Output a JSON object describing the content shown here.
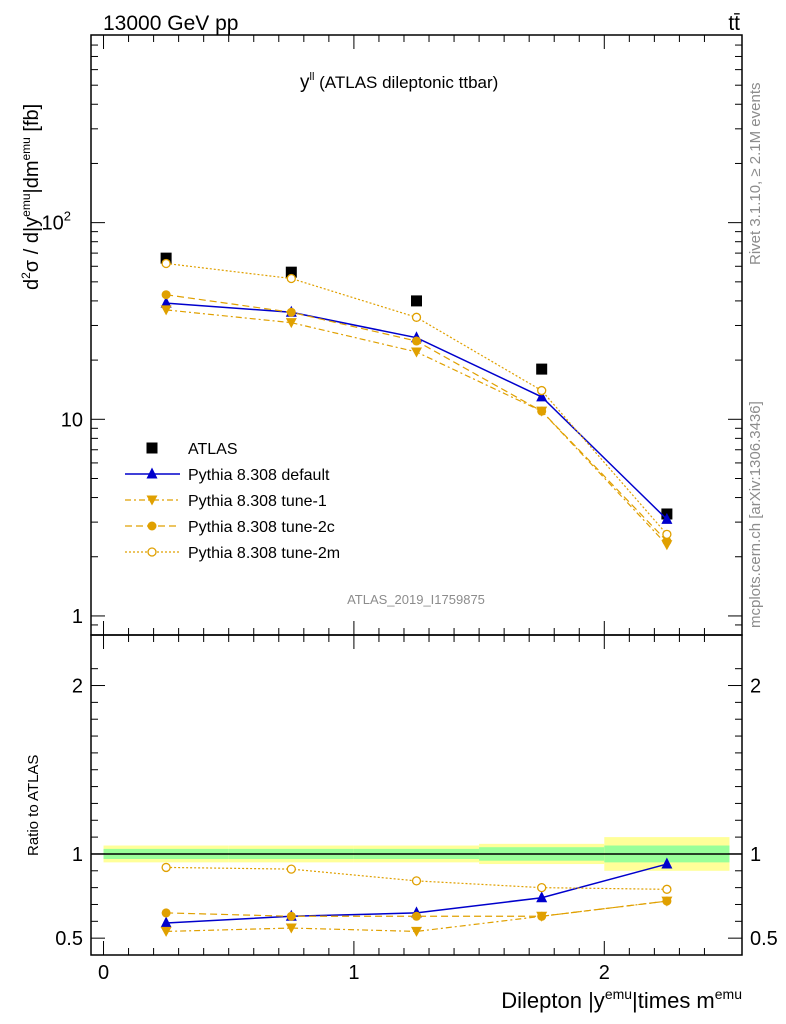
{
  "header": {
    "energy_label": "13000 GeV pp",
    "process_label": "tt̄"
  },
  "side_labels": {
    "rivet": "Rivet 3.1.10, ≥ 2.1M events",
    "mcplots": "mcplots.cern.ch [arXiv:1306.3436]"
  },
  "watermark": "ATLAS_2019_I1759875",
  "chart_data": [
    {
      "type": "scatter",
      "title": "y^ll (ATLAS dileptonic ttbar)",
      "title_main": "y",
      "title_sup": "ll",
      "title_rest": " (ATLAS dileptonic ttbar)",
      "ylabel": "d²σ / d|y^emu|dm^emu [fb]",
      "yscale": "log",
      "ylim": [
        0.8,
        900
      ],
      "yticks": [
        {
          "value": 1,
          "label": "1"
        },
        {
          "value": 10,
          "label": "10"
        },
        {
          "value": 100,
          "label": "10",
          "sup": "2"
        }
      ],
      "x": [
        0.25,
        0.75,
        1.25,
        1.75,
        2.25
      ],
      "xlim": [
        -0.05,
        2.55
      ],
      "legend_position": "lower-left",
      "series": [
        {
          "name": "ATLAS",
          "color": "#000000",
          "marker": "square",
          "line": "none",
          "values": [
            66,
            56,
            40,
            18,
            3.3
          ]
        },
        {
          "name": "Pythia 8.308 default",
          "color": "#0000cc",
          "marker": "triangle-up",
          "line": "solid",
          "values": [
            39,
            35,
            26,
            13,
            3.1
          ]
        },
        {
          "name": "Pythia 8.308 tune-1",
          "color": "#e0a000",
          "marker": "triangle-down",
          "line": "dashdot",
          "values": [
            36,
            31,
            22,
            11,
            2.3
          ]
        },
        {
          "name": "Pythia 8.308 tune-2c",
          "color": "#e0a000",
          "marker": "circle",
          "line": "dashed",
          "values": [
            43,
            35,
            25,
            11,
            2.4
          ]
        },
        {
          "name": "Pythia 8.308 tune-2m",
          "color": "#e0a000",
          "marker": "circle-open",
          "line": "dotted",
          "values": [
            62,
            52,
            33,
            14,
            2.6
          ]
        }
      ]
    },
    {
      "type": "scatter",
      "ylabel": "Ratio to ATLAS",
      "xlabel": "Dilepton |y^emu|times m^emu",
      "xlabel_parts": [
        "Dilepton |y",
        "emu",
        "|times m",
        "emu"
      ],
      "ylim": [
        0.4,
        2.3
      ],
      "yticks": [
        {
          "value": 0.5,
          "label": "0.5"
        },
        {
          "value": 1,
          "label": "1"
        },
        {
          "value": 2,
          "label": "2"
        }
      ],
      "xticks": [
        {
          "value": 0,
          "label": "0"
        },
        {
          "value": 1,
          "label": "1"
        },
        {
          "value": 2,
          "label": "2"
        }
      ],
      "x": [
        0.25,
        0.75,
        1.25,
        1.75,
        2.25
      ],
      "xlim": [
        -0.05,
        2.55
      ],
      "reference_line": 1,
      "uncertainty_bands": [
        {
          "x_range": [
            0,
            0.5
          ],
          "stat": [
            0.97,
            1.03
          ],
          "total": [
            0.95,
            1.05
          ]
        },
        {
          "x_range": [
            0.5,
            1.0
          ],
          "stat": [
            0.97,
            1.03
          ],
          "total": [
            0.95,
            1.05
          ]
        },
        {
          "x_range": [
            1.0,
            1.5
          ],
          "stat": [
            0.97,
            1.03
          ],
          "total": [
            0.95,
            1.05
          ]
        },
        {
          "x_range": [
            1.5,
            2.0
          ],
          "stat": [
            0.96,
            1.04
          ],
          "total": [
            0.94,
            1.06
          ]
        },
        {
          "x_range": [
            2.0,
            2.5
          ],
          "stat": [
            0.95,
            1.05
          ],
          "total": [
            0.9,
            1.1
          ]
        }
      ],
      "series": [
        {
          "name": "Pythia 8.308 default",
          "color": "#0000cc",
          "marker": "triangle-up",
          "line": "solid",
          "values": [
            0.59,
            0.63,
            0.65,
            0.74,
            0.94
          ]
        },
        {
          "name": "Pythia 8.308 tune-1",
          "color": "#e0a000",
          "marker": "triangle-down",
          "line": "dashdot",
          "values": [
            0.54,
            0.56,
            0.54,
            0.63,
            0.72
          ]
        },
        {
          "name": "Pythia 8.308 tune-2c",
          "color": "#e0a000",
          "marker": "circle",
          "line": "dashed",
          "values": [
            0.65,
            0.63,
            0.63,
            0.63,
            0.72
          ]
        },
        {
          "name": "Pythia 8.308 tune-2m",
          "color": "#e0a000",
          "marker": "circle-open",
          "line": "dotted",
          "values": [
            0.92,
            0.91,
            0.84,
            0.8,
            0.79
          ]
        }
      ]
    }
  ]
}
